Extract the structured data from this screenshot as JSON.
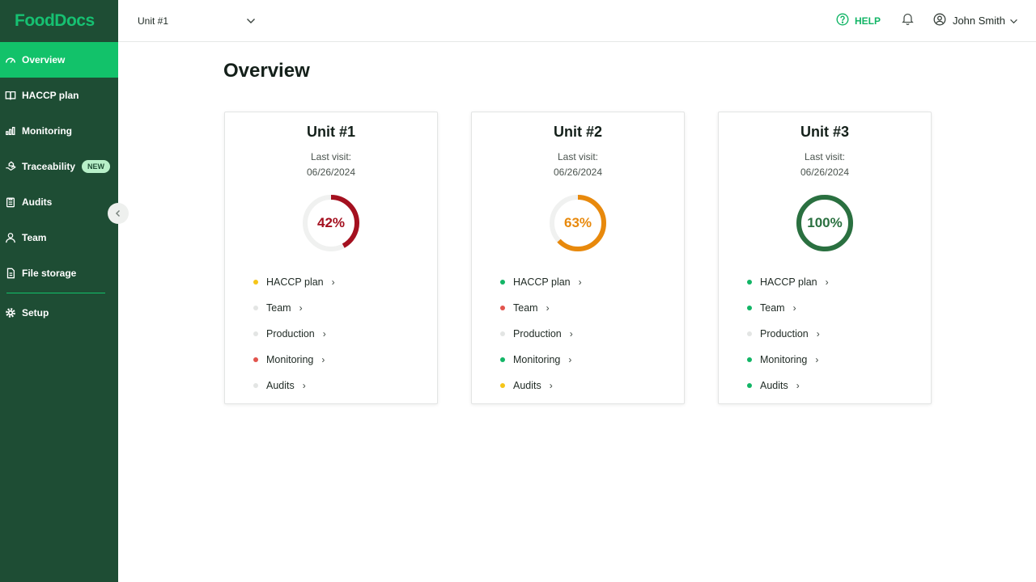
{
  "app": {
    "logo": "FoodDocs"
  },
  "sidebar": {
    "items": [
      {
        "label": "Overview",
        "icon": "gauge-icon",
        "active": true
      },
      {
        "label": "HACCP plan",
        "icon": "book-icon"
      },
      {
        "label": "Monitoring",
        "icon": "bar-chart-icon"
      },
      {
        "label": "Traceability",
        "icon": "hand-icon",
        "badge": "NEW"
      },
      {
        "label": "Audits",
        "icon": "clipboard-icon"
      },
      {
        "label": "Team",
        "icon": "person-icon"
      },
      {
        "label": "File storage",
        "icon": "folder-icon"
      },
      {
        "label": "Setup",
        "icon": "gear-icon"
      }
    ]
  },
  "header": {
    "unit_selector": "Unit #1",
    "help": "HELP",
    "user_name": "John Smith"
  },
  "main": {
    "title": "Overview",
    "cards": [
      {
        "title": "Unit #1",
        "last_visit_label": "Last visit:",
        "last_visit_date": "06/26/2024",
        "percent_label": "42%",
        "percent": 42,
        "color": "#a4101f",
        "items": [
          {
            "label": "HACCP plan",
            "status": "#f5c518"
          },
          {
            "label": "Team",
            "status": "#e3e5e4"
          },
          {
            "label": "Production",
            "status": "#e3e5e4"
          },
          {
            "label": "Monitoring",
            "status": "#e2544d"
          },
          {
            "label": "Audits",
            "status": "#e3e5e4"
          }
        ]
      },
      {
        "title": "Unit #2",
        "last_visit_label": "Last visit:",
        "last_visit_date": "06/26/2024",
        "percent_label": "63%",
        "percent": 63,
        "color": "#e8890c",
        "items": [
          {
            "label": "HACCP plan",
            "status": "#12b566"
          },
          {
            "label": "Team",
            "status": "#e2544d"
          },
          {
            "label": "Production",
            "status": "#e3e5e4"
          },
          {
            "label": "Monitoring",
            "status": "#12b566"
          },
          {
            "label": "Audits",
            "status": "#f5c518"
          }
        ]
      },
      {
        "title": "Unit #3",
        "last_visit_label": "Last visit:",
        "last_visit_date": "06/26/2024",
        "percent_label": "100%",
        "percent": 100,
        "color": "#2a7040",
        "items": [
          {
            "label": "HACCP plan",
            "status": "#12b566"
          },
          {
            "label": "Team",
            "status": "#12b566"
          },
          {
            "label": "Production",
            "status": "#e3e5e4"
          },
          {
            "label": "Monitoring",
            "status": "#12b566"
          },
          {
            "label": "Audits",
            "status": "#12b566"
          }
        ]
      }
    ]
  }
}
